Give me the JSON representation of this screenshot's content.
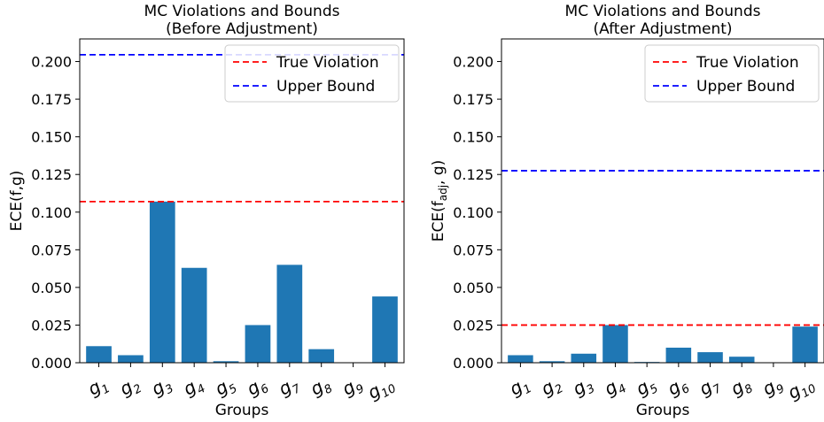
{
  "colors": {
    "bar": "#1f77b4",
    "true_violation": "#ff0000",
    "upper_bound": "#0000ff"
  },
  "chart_data": [
    {
      "type": "bar",
      "title_line1": "MC Violations and Bounds",
      "title_line2": "(Before Adjustment)",
      "xlabel": "Groups",
      "ylabel": "ECE(f,g)",
      "ylabel_parts": {
        "pre": "ECE(f,g)",
        "sub": "",
        "post": ""
      },
      "categories": [
        "1",
        "2",
        "3",
        "4",
        "5",
        "6",
        "7",
        "8",
        "9",
        "10"
      ],
      "category_base": "g",
      "values": [
        0.011,
        0.005,
        0.107,
        0.063,
        0.001,
        0.025,
        0.065,
        0.009,
        0.0,
        0.044
      ],
      "ylim": [
        0,
        0.215
      ],
      "yticks": [
        "0.000",
        "0.025",
        "0.050",
        "0.075",
        "0.100",
        "0.125",
        "0.150",
        "0.175",
        "0.200"
      ],
      "ytick_values": [
        0,
        0.025,
        0.05,
        0.075,
        0.1,
        0.125,
        0.15,
        0.175,
        0.2
      ],
      "lines": [
        {
          "name": "True Violation",
          "value": 0.107,
          "color": "#ff0000"
        },
        {
          "name": "Upper Bound",
          "value": 0.2045,
          "color": "#0000ff"
        }
      ],
      "legend_position": "top-right",
      "grid": false
    },
    {
      "type": "bar",
      "title_line1": "MC Violations and Bounds",
      "title_line2": "(After Adjustment)",
      "xlabel": "Groups",
      "ylabel": "ECE(f_adj, g)",
      "ylabel_parts": {
        "pre": "ECE(f",
        "sub": "adj",
        "post": ", g)"
      },
      "categories": [
        "1",
        "2",
        "3",
        "4",
        "5",
        "6",
        "7",
        "8",
        "9",
        "10"
      ],
      "category_base": "g",
      "values": [
        0.005,
        0.001,
        0.006,
        0.025,
        0.0005,
        0.01,
        0.007,
        0.004,
        0.0,
        0.024
      ],
      "ylim": [
        0,
        0.215
      ],
      "yticks": [
        "0.000",
        "0.025",
        "0.050",
        "0.075",
        "0.100",
        "0.125",
        "0.150",
        "0.175",
        "0.200"
      ],
      "ytick_values": [
        0,
        0.025,
        0.05,
        0.075,
        0.1,
        0.125,
        0.15,
        0.175,
        0.2
      ],
      "lines": [
        {
          "name": "True Violation",
          "value": 0.025,
          "color": "#ff0000"
        },
        {
          "name": "Upper Bound",
          "value": 0.1275,
          "color": "#0000ff"
        }
      ],
      "legend_position": "top-right",
      "grid": false
    }
  ]
}
